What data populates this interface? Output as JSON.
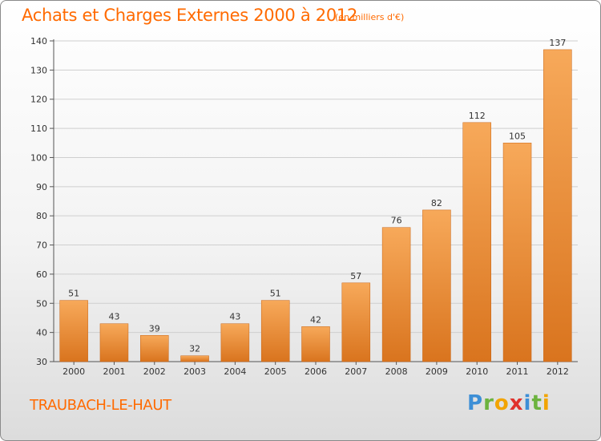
{
  "chart_data": {
    "type": "bar",
    "title": "Achats et Charges Externes 2000 à 2012",
    "subtitle": "(en milliers d'€)",
    "xlabel": "",
    "ylabel": "",
    "categories": [
      "2000",
      "2001",
      "2002",
      "2003",
      "2004",
      "2005",
      "2006",
      "2007",
      "2008",
      "2009",
      "2010",
      "2011",
      "2012"
    ],
    "values": [
      51,
      43,
      39,
      32,
      43,
      51,
      42,
      57,
      76,
      82,
      112,
      105,
      137
    ],
    "ylim": [
      30,
      140
    ],
    "yticks": [
      30,
      40,
      50,
      60,
      70,
      80,
      90,
      100,
      110,
      120,
      130,
      140
    ],
    "grid": true,
    "data_labels": true
  },
  "footer": {
    "commune": "TRAUBACH-LE-HAUT",
    "logo_letters": [
      "P",
      "r",
      "o",
      "x",
      "i",
      "t",
      "i"
    ]
  },
  "colors": {
    "accent": "#ff6a00",
    "bar_light": "#f7a95a",
    "bar_dark": "#d9741e",
    "logo": [
      "#3d8fd6",
      "#6cb33f",
      "#f2a400",
      "#e0322c",
      "#3d8fd6",
      "#6cb33f",
      "#f2a400"
    ]
  }
}
